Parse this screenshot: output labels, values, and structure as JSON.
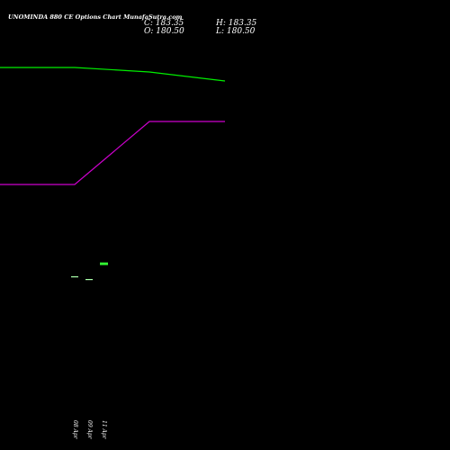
{
  "header": {
    "title": "UNOMINDA 880  CE Options  Chart MunafaSutra.com",
    "close": "C: 183.35",
    "high": "H: 183.35",
    "open": "O: 180.50",
    "low": "L: 180.50"
  },
  "colors": {
    "background": "#000000",
    "green_line": "#00ee00",
    "magenta_line": "#cc00cc",
    "bar_up": "#33ff33",
    "bar_neutral": "#aaffaa",
    "text": "#ffffff"
  },
  "chart_data": {
    "type": "line",
    "x": [
      "08 Apr",
      "09 Apr",
      "11 Apr"
    ],
    "x_tick_labels": [
      "08 Apr",
      "09 Apr",
      "11 Apr"
    ],
    "series": [
      {
        "color": "#00ee00",
        "values": [
          400,
          395,
          385
        ]
      },
      {
        "color": "#cc00cc",
        "values": [
          270,
          340,
          340
        ]
      }
    ],
    "candles": [
      {
        "x": "08 Apr",
        "open": 168,
        "close": 168
      },
      {
        "x": "09 Apr",
        "open": 165,
        "close": 165
      },
      {
        "x": "11 Apr",
        "open": 180.5,
        "close": 183.35
      }
    ],
    "ylim": [
      120,
      420
    ],
    "grid": false
  }
}
